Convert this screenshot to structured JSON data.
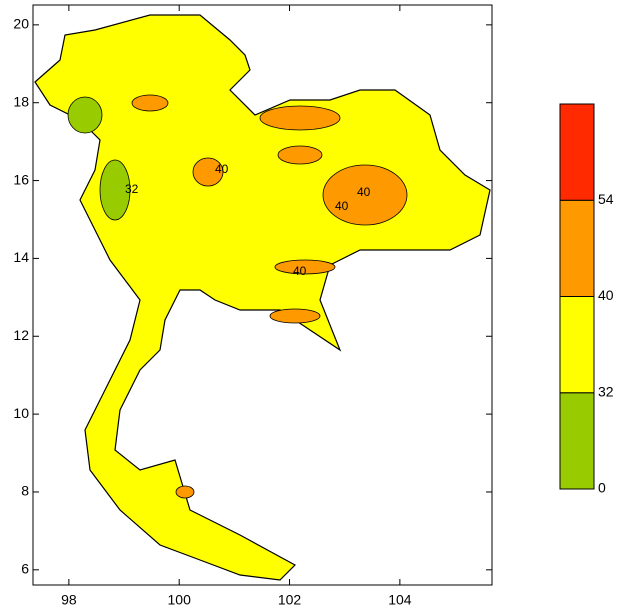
{
  "map": {
    "xlim": [
      97.35,
      105.67
    ],
    "ylim": [
      5.61,
      20.51
    ],
    "xticks": [
      98,
      100,
      102,
      104
    ],
    "yticks": [
      6,
      8,
      10,
      12,
      14,
      16,
      18,
      20
    ],
    "colorbar": {
      "levels": [
        0,
        32,
        40,
        54
      ],
      "colors": [
        "#99cc00",
        "#ffff00",
        "#ff9900",
        "#ff2a00"
      ]
    },
    "contour_labels": [
      "40",
      "40",
      "40",
      "32",
      "40"
    ]
  }
}
